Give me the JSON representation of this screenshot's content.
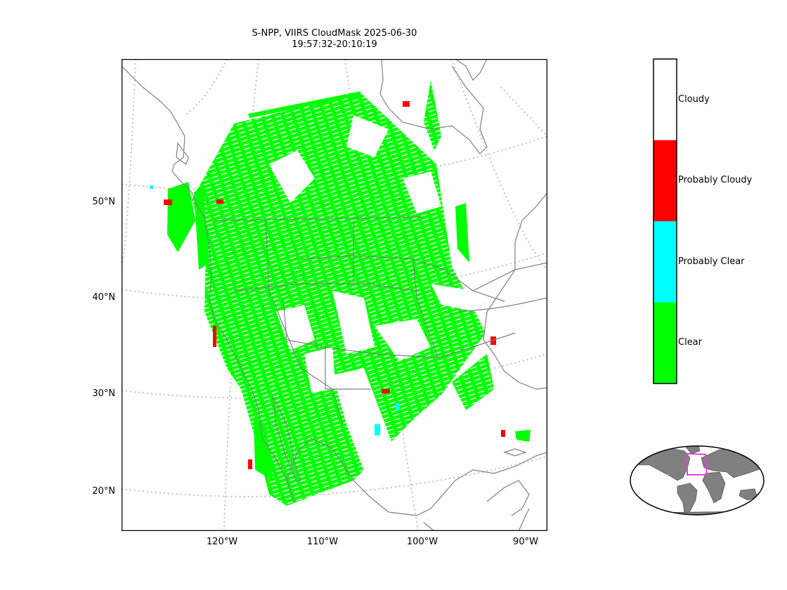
{
  "title": {
    "line1": "S-NPP, VIIRS CloudMask 2025-06-30",
    "line2": "19:57:32-20:10:19"
  },
  "latitude_labels": [
    "50°N",
    "40°N",
    "30°N",
    "20°N"
  ],
  "longitude_labels": [
    "120°W",
    "110°W",
    "100°W",
    "90°W"
  ],
  "legend": [
    {
      "label": "Cloudy",
      "color": "#ffffff"
    },
    {
      "label": "Probably Cloudy",
      "color": "#ff0000"
    },
    {
      "label": "Probably Clear",
      "color": "#00ffff"
    },
    {
      "label": "Clear",
      "color": "#00ff00"
    }
  ],
  "colors": {
    "coastline": "#808080",
    "graticule": "#c0c0c0",
    "inset_land": "#808080",
    "inset_highlight": "#e040e0"
  }
}
